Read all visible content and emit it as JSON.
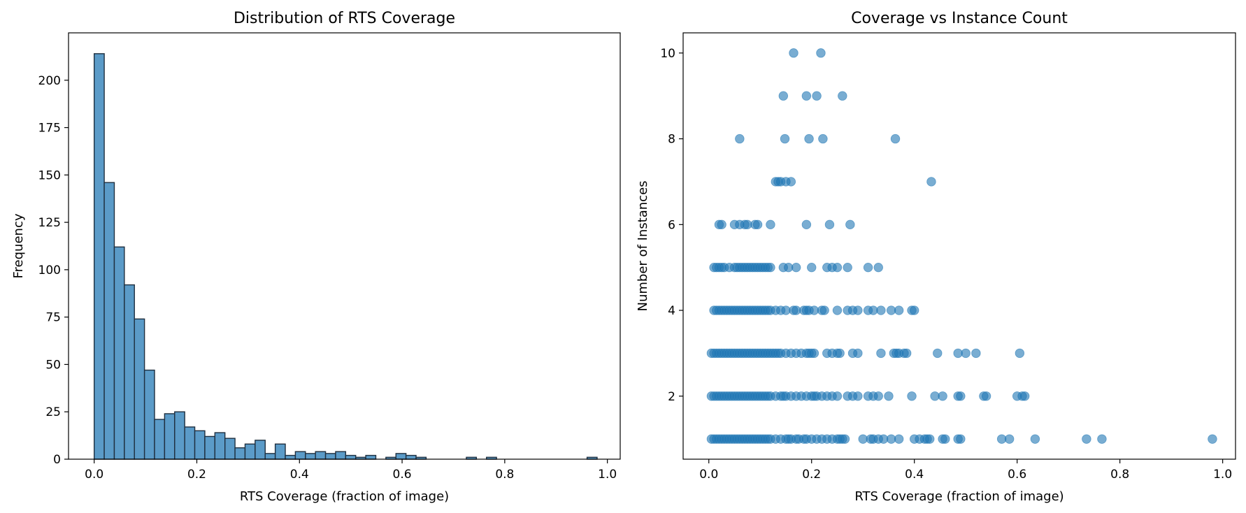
{
  "chart_data": [
    {
      "type": "bar",
      "subtype": "histogram",
      "title": "Distribution of RTS Coverage",
      "xlabel": "RTS Coverage (fraction of image)",
      "ylabel": "Frequency",
      "xlim": [
        -0.05,
        1.025
      ],
      "ylim": [
        0,
        225
      ],
      "xticks": [
        0.0,
        0.2,
        0.4,
        0.6,
        0.8,
        1.0
      ],
      "xtick_labels": [
        "0.0",
        "0.2",
        "0.4",
        "0.6",
        "0.8",
        "1.0"
      ],
      "yticks": [
        0,
        25,
        50,
        75,
        100,
        125,
        150,
        175,
        200
      ],
      "yticks_labels": [
        "0",
        "25",
        "50",
        "75",
        "100",
        "125",
        "150",
        "175",
        "200"
      ],
      "bin_start": 0.0,
      "bin_width": 0.0196,
      "values": [
        214,
        146,
        112,
        92,
        74,
        47,
        21,
        24,
        25,
        17,
        15,
        12,
        14,
        11,
        6,
        8,
        10,
        3,
        8,
        2,
        4,
        3,
        4,
        3,
        4,
        2,
        1,
        2,
        0,
        1,
        3,
        2,
        1,
        0,
        0,
        0,
        0,
        1,
        0,
        1,
        0,
        0,
        0,
        0,
        0,
        0,
        0,
        0,
        0,
        1
      ],
      "bar_color": "#5b9bc8",
      "edge_color": "#1f2f3f",
      "grid": false,
      "legend": "none"
    },
    {
      "type": "scatter",
      "title": "Coverage vs Instance Count",
      "xlabel": "RTS Coverage (fraction of image)",
      "ylabel": "Number of Instances",
      "xlim": [
        -0.05,
        1.025
      ],
      "ylim": [
        0.53,
        10.47
      ],
      "xticks": [
        0.0,
        0.2,
        0.4,
        0.6,
        0.8,
        1.0
      ],
      "xtick_labels": [
        "0.0",
        "0.2",
        "0.4",
        "0.6",
        "0.8",
        "1.0"
      ],
      "yticks": [
        2,
        4,
        6,
        8,
        10
      ],
      "yticks_labels": [
        "2",
        "4",
        "6",
        "8",
        "10"
      ],
      "point_color": "#1f77b4",
      "point_alpha": 0.6,
      "grid": false,
      "legend": "none",
      "points": [
        {
          "y": 10,
          "x": [
            0.165,
            0.218
          ]
        },
        {
          "y": 9,
          "x": [
            0.145,
            0.19,
            0.21,
            0.26
          ]
        },
        {
          "y": 8,
          "x": [
            0.06,
            0.148,
            0.195,
            0.222,
            0.363
          ]
        },
        {
          "y": 7,
          "x": [
            0.13,
            0.135,
            0.14,
            0.15,
            0.16,
            0.433
          ]
        },
        {
          "y": 6,
          "x": [
            0.02,
            0.025,
            0.05,
            0.06,
            0.07,
            0.075,
            0.09,
            0.095,
            0.12,
            0.19,
            0.235,
            0.275
          ]
        },
        {
          "y": 5,
          "x": [
            0.01,
            0.015,
            0.02,
            0.025,
            0.03,
            0.04,
            0.05,
            0.055,
            0.06,
            0.065,
            0.07,
            0.075,
            0.08,
            0.085,
            0.09,
            0.095,
            0.1,
            0.105,
            0.11,
            0.115,
            0.12,
            0.145,
            0.155,
            0.17,
            0.2,
            0.23,
            0.24,
            0.25,
            0.27,
            0.31,
            0.33
          ]
        },
        {
          "y": 4,
          "x": [
            0.01,
            0.015,
            0.02,
            0.025,
            0.03,
            0.035,
            0.04,
            0.045,
            0.05,
            0.055,
            0.06,
            0.065,
            0.07,
            0.075,
            0.08,
            0.085,
            0.09,
            0.095,
            0.1,
            0.105,
            0.11,
            0.115,
            0.12,
            0.13,
            0.14,
            0.15,
            0.165,
            0.17,
            0.185,
            0.19,
            0.195,
            0.205,
            0.22,
            0.225,
            0.25,
            0.27,
            0.28,
            0.29,
            0.31,
            0.32,
            0.335,
            0.355,
            0.37,
            0.395,
            0.4
          ]
        },
        {
          "y": 3,
          "x": [
            0.005,
            0.01,
            0.015,
            0.02,
            0.025,
            0.03,
            0.035,
            0.04,
            0.045,
            0.05,
            0.055,
            0.06,
            0.065,
            0.07,
            0.075,
            0.08,
            0.085,
            0.09,
            0.095,
            0.1,
            0.105,
            0.11,
            0.115,
            0.12,
            0.125,
            0.13,
            0.135,
            0.14,
            0.15,
            0.16,
            0.17,
            0.18,
            0.19,
            0.195,
            0.2,
            0.205,
            0.23,
            0.24,
            0.25,
            0.255,
            0.28,
            0.29,
            0.335,
            0.36,
            0.365,
            0.37,
            0.38,
            0.385,
            0.445,
            0.485,
            0.5,
            0.52,
            0.605
          ]
        },
        {
          "y": 2,
          "x": [
            0.005,
            0.01,
            0.015,
            0.02,
            0.025,
            0.03,
            0.035,
            0.04,
            0.045,
            0.05,
            0.055,
            0.06,
            0.065,
            0.07,
            0.075,
            0.08,
            0.085,
            0.09,
            0.095,
            0.1,
            0.105,
            0.11,
            0.115,
            0.12,
            0.13,
            0.14,
            0.145,
            0.15,
            0.16,
            0.17,
            0.18,
            0.19,
            0.2,
            0.205,
            0.21,
            0.22,
            0.23,
            0.24,
            0.25,
            0.27,
            0.28,
            0.29,
            0.31,
            0.32,
            0.33,
            0.35,
            0.395,
            0.44,
            0.455,
            0.485,
            0.49,
            0.535,
            0.54,
            0.6,
            0.61,
            0.615
          ]
        },
        {
          "y": 1,
          "x": [
            0.005,
            0.01,
            0.015,
            0.02,
            0.025,
            0.03,
            0.035,
            0.04,
            0.045,
            0.05,
            0.055,
            0.06,
            0.065,
            0.07,
            0.075,
            0.08,
            0.085,
            0.09,
            0.095,
            0.1,
            0.105,
            0.11,
            0.115,
            0.12,
            0.13,
            0.14,
            0.15,
            0.155,
            0.16,
            0.17,
            0.175,
            0.185,
            0.19,
            0.2,
            0.21,
            0.22,
            0.23,
            0.24,
            0.25,
            0.255,
            0.26,
            0.265,
            0.3,
            0.315,
            0.32,
            0.33,
            0.34,
            0.355,
            0.37,
            0.4,
            0.41,
            0.42,
            0.425,
            0.43,
            0.455,
            0.46,
            0.485,
            0.49,
            0.57,
            0.585,
            0.635,
            0.735,
            0.765,
            0.98
          ]
        }
      ]
    }
  ]
}
